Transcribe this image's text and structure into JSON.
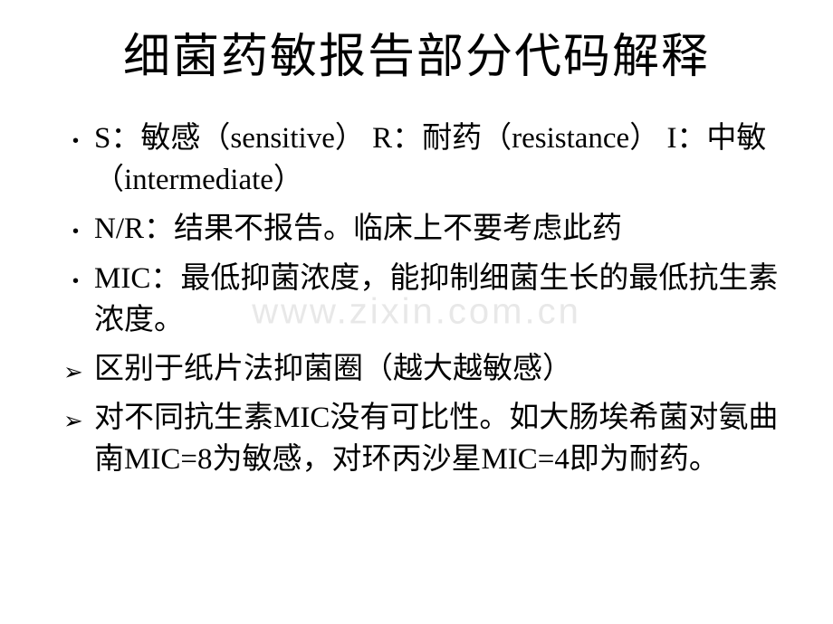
{
  "title": "细菌药敏报告部分代码解释",
  "watermark": "www.zixin.com.cn",
  "bullets": [
    {
      "type": "dot",
      "text": "S：敏感（sensitive）     R：耐药（resistance）   I：中敏（intermediate）"
    },
    {
      "type": "dot",
      "text": "N/R：结果不报告。临床上不要考虑此药"
    },
    {
      "type": "dot",
      "text": "MIC：最低抑菌浓度，能抑制细菌生长的最低抗生素浓度。"
    },
    {
      "type": "arrow",
      "text": "区别于纸片法抑菌圈（越大越敏感）"
    },
    {
      "type": "arrow",
      "text": "对不同抗生素MIC没有可比性。如大肠埃希菌对氨曲南MIC=8为敏感，对环丙沙星MIC=4即为耐药。"
    }
  ],
  "styling": {
    "background_color": "#ffffff",
    "text_color": "#000000",
    "title_fontsize": 52,
    "body_fontsize": 33,
    "watermark_color": "#e8e8e8",
    "font_family_cjk": "SimSun",
    "font_family_latin": "Arial"
  }
}
